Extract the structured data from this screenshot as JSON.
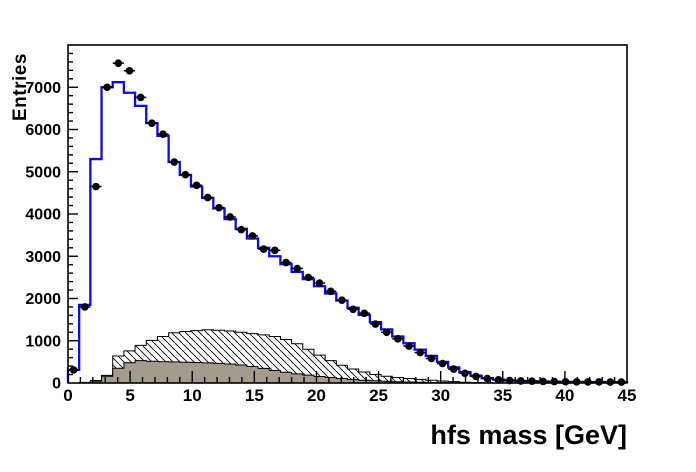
{
  "chart_data": {
    "type": "bar",
    "subtype": "overlaid-1d-histograms",
    "title": "",
    "xlabel": "hfs mass [GeV]",
    "ylabel": "Entries",
    "xlim": [
      0,
      45
    ],
    "ylim": [
      0,
      8000
    ],
    "bin_width": 0.9,
    "n_bins": 50,
    "x_major_ticks": [
      0,
      5,
      10,
      15,
      20,
      25,
      30,
      35,
      40,
      45
    ],
    "x_minor_step": 1,
    "y_major_ticks": [
      0,
      1000,
      2000,
      3000,
      4000,
      5000,
      6000,
      7000
    ],
    "y_minor_step": 200,
    "grid": false,
    "legend": "none",
    "colors": {
      "background": "#ffffff",
      "frame": "#000000",
      "blue_line": "#0a0af0",
      "gray_fill": "#a59b8c",
      "hatch_line": "#000000",
      "marker": "#000000"
    },
    "series": [
      {
        "name": "data-points",
        "style": "black filled circle markers with error bars",
        "values": [
          310,
          1800,
          4650,
          7000,
          7570,
          7390,
          6760,
          6150,
          5890,
          5230,
          4930,
          4680,
          4390,
          4150,
          3930,
          3630,
          3480,
          3170,
          3140,
          2850,
          2710,
          2500,
          2365,
          2170,
          1960,
          1745,
          1650,
          1395,
          1200,
          1045,
          875,
          720,
          580,
          460,
          330,
          230,
          155,
          105,
          75,
          58,
          48,
          42,
          38,
          33,
          30,
          28,
          26,
          25,
          23,
          22
        ]
      },
      {
        "name": "total-prediction",
        "style": "blue step line",
        "values": [
          310,
          1850,
          5300,
          7000,
          7120,
          6870,
          6560,
          6150,
          5850,
          5230,
          4925,
          4650,
          4380,
          4130,
          3880,
          3650,
          3420,
          3200,
          3000,
          2810,
          2630,
          2460,
          2290,
          2120,
          1950,
          1780,
          1610,
          1440,
          1270,
          1100,
          940,
          790,
          640,
          500,
          370,
          260,
          175,
          115,
          80,
          60,
          48,
          40,
          34,
          30,
          27,
          25,
          23,
          22,
          21,
          20
        ]
      },
      {
        "name": "background-hatched",
        "style": "white fill with black diagonal hatching, black outline",
        "values": [
          0,
          0,
          60,
          180,
          640,
          760,
          890,
          1010,
          1100,
          1190,
          1220,
          1240,
          1260,
          1250,
          1230,
          1200,
          1170,
          1140,
          1100,
          1030,
          930,
          800,
          660,
          530,
          420,
          330,
          260,
          200,
          160,
          130,
          105,
          85,
          65,
          48,
          32,
          18,
          8,
          3,
          0,
          0,
          0,
          0,
          0,
          0,
          0,
          0,
          0,
          0,
          0,
          0
        ]
      },
      {
        "name": "background-gray",
        "style": "solid gray fill, black outline",
        "values": [
          0,
          15,
          45,
          160,
          350,
          480,
          530,
          515,
          505,
          500,
          490,
          485,
          475,
          465,
          450,
          425,
          390,
          345,
          295,
          255,
          215,
          185,
          155,
          130,
          105,
          85,
          66,
          52,
          40,
          31,
          24,
          18,
          13,
          9,
          6,
          3,
          1,
          0,
          0,
          0,
          0,
          0,
          0,
          0,
          0,
          0,
          0,
          0,
          0,
          0
        ]
      }
    ]
  }
}
